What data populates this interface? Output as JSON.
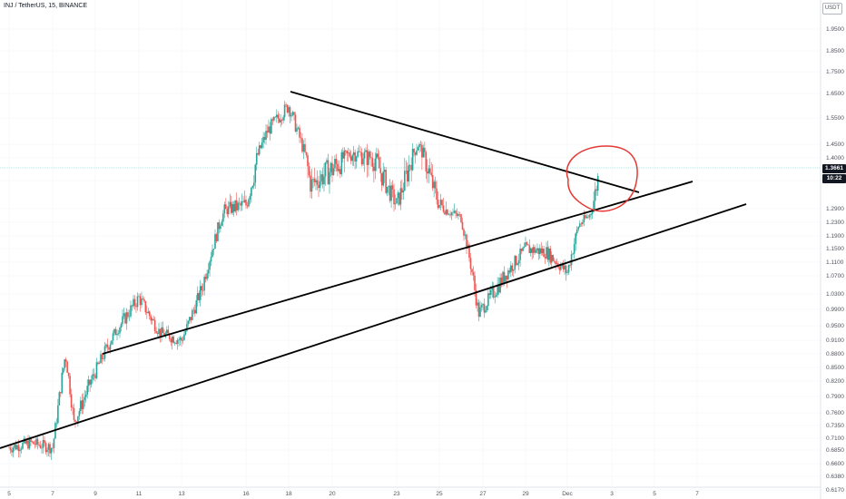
{
  "header": {
    "symbol_line": "INJ / TetherUS, 15, BINANCE"
  },
  "currency_badge": "USDT",
  "price_badges": {
    "last_price": "1.3661",
    "countdown": "10:22"
  },
  "colors": {
    "candle_up": "#26a69a",
    "candle_down": "#ef5350",
    "trendline": "#000000",
    "circle": "#e53935",
    "price_line": "#80cbc4"
  },
  "chart_data": {
    "type": "candlestick",
    "title": "",
    "ylim": [
      0.6,
      2.0
    ],
    "y_ticks": [
      "1.9500",
      "1.8500",
      "1.7500",
      "1.6500",
      "1.5500",
      "1.4500",
      "1.4000",
      "1.3600",
      "1.2900",
      "1.2300",
      "1.1900",
      "1.1500",
      "1.1100",
      "1.0700",
      "1.0300",
      "0.9900",
      "0.9500",
      "0.9100",
      "0.8800",
      "0.8500",
      "0.8200",
      "0.7900",
      "0.7600",
      "0.7350",
      "0.7100",
      "0.6850",
      "0.6600",
      "0.6380",
      "0.6170"
    ],
    "x_ticks": [
      "5",
      "7",
      "9",
      "11",
      "13",
      "16",
      "18",
      "20",
      "23",
      "25",
      "27",
      "29",
      "Dec",
      "3",
      "5",
      "7"
    ],
    "x_range_days": [
      "Nov 5",
      "Dec 7"
    ],
    "price_path_anchors": [
      {
        "x": "Nov 5",
        "price": 0.69
      },
      {
        "x": "Nov 6",
        "price": 0.7
      },
      {
        "x": "Nov 7",
        "price": 0.69
      },
      {
        "x": "Nov 7.6",
        "price": 0.88
      },
      {
        "x": "Nov 8",
        "price": 0.74
      },
      {
        "x": "Nov 9",
        "price": 0.84
      },
      {
        "x": "Nov 10",
        "price": 0.94
      },
      {
        "x": "Nov 11",
        "price": 1.02
      },
      {
        "x": "Nov 12",
        "price": 0.93
      },
      {
        "x": "Nov 13",
        "price": 0.91
      },
      {
        "x": "Nov 14",
        "price": 1.05
      },
      {
        "x": "Nov 15",
        "price": 1.28
      },
      {
        "x": "Nov 16",
        "price": 1.3
      },
      {
        "x": "Nov 17",
        "price": 1.5
      },
      {
        "x": "Nov 18",
        "price": 1.6
      },
      {
        "x": "Nov 19",
        "price": 1.35
      },
      {
        "x": "Nov 20",
        "price": 1.38
      },
      {
        "x": "Nov 21",
        "price": 1.42
      },
      {
        "x": "Nov 22",
        "price": 1.4
      },
      {
        "x": "Nov 23",
        "price": 1.3
      },
      {
        "x": "Nov 24",
        "price": 1.45
      },
      {
        "x": "Nov 25",
        "price": 1.3
      },
      {
        "x": "Nov 26",
        "price": 1.25
      },
      {
        "x": "Nov 26.8",
        "price": 0.98
      },
      {
        "x": "Nov 28",
        "price": 1.07
      },
      {
        "x": "Nov 29",
        "price": 1.15
      },
      {
        "x": "Nov 30",
        "price": 1.14
      },
      {
        "x": "Dec 1",
        "price": 1.08
      },
      {
        "x": "Dec 1.5",
        "price": 1.22
      },
      {
        "x": "Dec 2",
        "price": 1.26
      },
      {
        "x": "Dec 2.4",
        "price": 1.37
      }
    ],
    "annotations": {
      "trendlines": [
        {
          "name": "descending-resistance",
          "from": {
            "x": "Nov 18",
            "price": 1.66
          },
          "to": {
            "x": "Dec 4",
            "price": 1.28
          }
        },
        {
          "name": "rising-channel-upper",
          "from": {
            "x": "Nov 9.2",
            "price": 0.86
          },
          "to": {
            "x": "Dec 5.8",
            "price": 1.31
          }
        },
        {
          "name": "rising-channel-lower",
          "from": {
            "x": "Nov 5",
            "price": 0.655
          },
          "to": {
            "x": "Dec 8.2",
            "price": 1.24
          }
        }
      ],
      "circle_around": {
        "x": "Dec 2.3",
        "price": 1.33
      }
    }
  }
}
